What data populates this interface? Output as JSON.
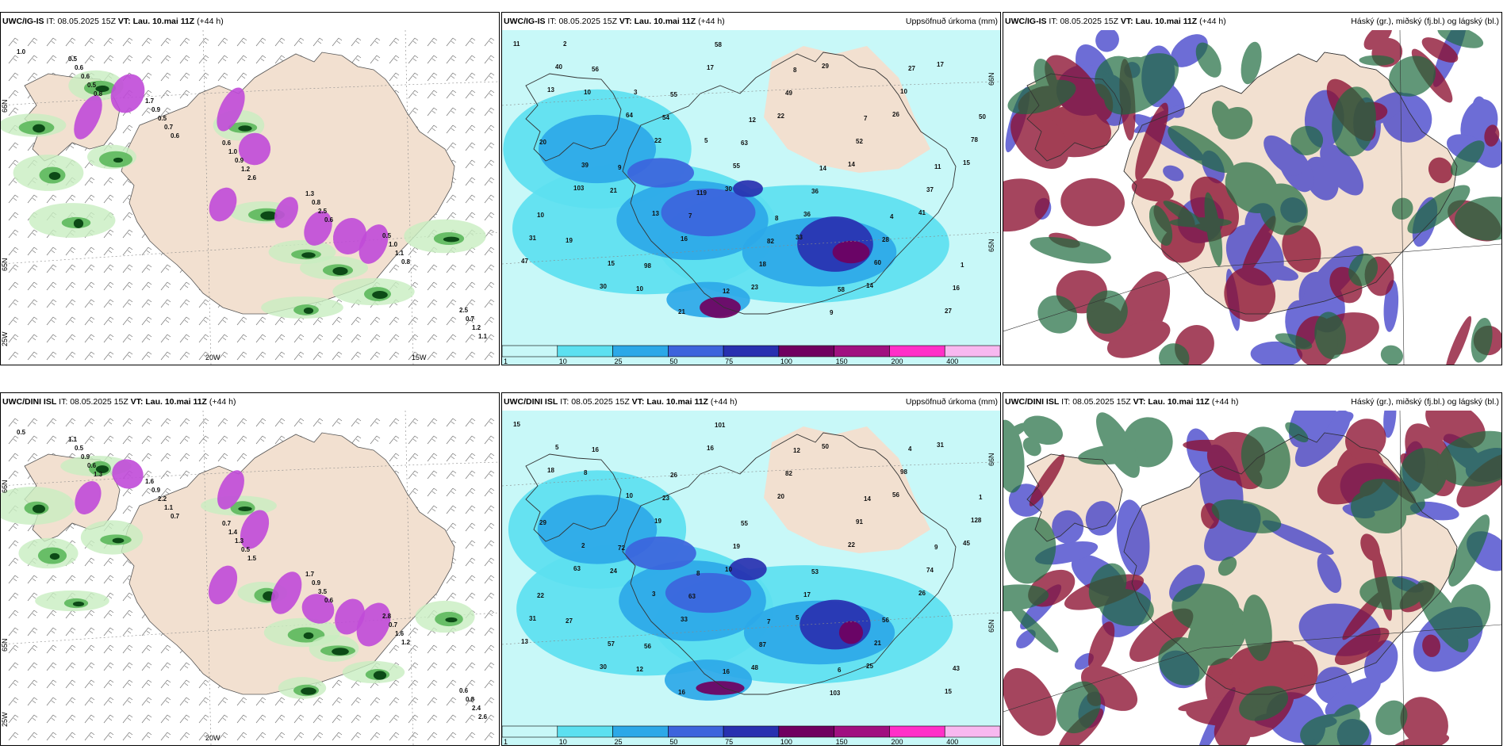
{
  "colors": {
    "land": "#f2e0d0",
    "sea": "#ffffff",
    "precip_light_green": "#c8eec0",
    "precip_green": "#5cb85c",
    "precip_dark_green": "#0c4a16",
    "snow_purple": "#c04ad8",
    "rain_c1": "#c8f8f8",
    "rain_c2": "#5ce0f0",
    "rain_c3": "#2ca8e8",
    "rain_c4": "#3c64dc",
    "rain_c5": "#2830b0",
    "rain_c6": "#700060",
    "cloud_high": "#1e6a3e",
    "cloud_mid": "#8c1030",
    "cloud_low": "#3c3cc8"
  },
  "panels": [
    {
      "id": "p1",
      "model": "UWC/IG-IS",
      "it_label": "IT:",
      "it_value": "08.05.2025 15Z",
      "vt_label": "VT:",
      "vt_value": "Lau. 10.mai 11Z",
      "lead": "(+44 h)",
      "right_title": "",
      "lon_labels": [
        "20W",
        "15W"
      ],
      "lat_labels": [
        "66N",
        "65N",
        "25W"
      ],
      "values": [
        "1.0",
        "0.8",
        "0.6",
        "2.6",
        "0.6",
        "0.8",
        "1.1",
        "0.5",
        "0.7",
        "1.2",
        "2.5",
        "1.1",
        "1.2",
        "0.6",
        "0.5",
        "0.9",
        "0.8",
        "1.0",
        "0.7",
        "0.6",
        "0.9",
        "1.0",
        "1.3",
        "0.5",
        "2.5",
        "0.5",
        "1.7",
        "0.6"
      ]
    },
    {
      "id": "p2",
      "model": "UWC/IG-IS",
      "it_label": "IT:",
      "it_value": "08.05.2025 15Z",
      "vt_label": "VT:",
      "vt_value": "Lau. 10.mai 11Z",
      "lead": "(+44 h)",
      "right_title": "Uppsöfnuð úrkoma (mm)",
      "lat_labels": [
        "66N",
        "65N"
      ],
      "values": [
        "11",
        "10",
        "22",
        "30",
        "33",
        "14",
        "17",
        "20",
        "21",
        "16",
        "23",
        "29",
        "26",
        "15",
        "19",
        "10",
        "17",
        "22",
        "14",
        "41",
        "47",
        "56",
        "54",
        "55",
        "36",
        "60",
        "27",
        "13",
        "9",
        "7",
        "18",
        "9",
        "10",
        "78",
        "103",
        "98",
        "58",
        "49",
        "52",
        "37",
        "31",
        "30",
        "55",
        "63",
        "36",
        "28",
        "16",
        "40",
        "64",
        "119",
        "82",
        "58",
        "27",
        "50",
        "39",
        "13",
        "12",
        "8",
        "7",
        "11",
        "10",
        "15",
        "21",
        "12",
        "14",
        "4",
        "1",
        "2",
        "3",
        "5",
        "8"
      ],
      "legend": [
        "1",
        "10",
        "25",
        "50",
        "75",
        "100",
        "150",
        "200",
        "400"
      ]
    },
    {
      "id": "p3",
      "model": "UWC/IG-IS",
      "it_label": "IT:",
      "it_value": "08.05.2025 15Z",
      "vt_label": "VT:",
      "vt_value": "Lau. 10.mai 11Z",
      "lead": "(+44 h)",
      "right_title": "Háský (gr.), miðský (fj.bl.) og lágský (bl.)"
    },
    {
      "id": "p4",
      "model": "UWC/DINI ISL",
      "it_label": "IT:",
      "it_value": "08.05.2025 15Z",
      "vt_label": "VT:",
      "vt_value": "Lau. 10.mai 11Z",
      "lead": "(+44 h)",
      "right_title": "",
      "lon_labels": [
        "20W"
      ],
      "lat_labels": [
        "66N",
        "65N",
        "25W"
      ],
      "values": [
        "0.5",
        "1.3",
        "0.7",
        "1.5",
        "0.6",
        "1.2",
        "2.6",
        "0.6",
        "1.1",
        "0.5",
        "3.5",
        "1.6",
        "2.4",
        "0.9",
        "2.2",
        "1.3",
        "0.9",
        "0.7",
        "0.8",
        "0.5",
        "0.9",
        "1.4",
        "1.7",
        "2.8",
        "0.6",
        "1.1",
        "1.6",
        "0.7"
      ]
    },
    {
      "id": "p5",
      "model": "UWC/DINI ISL",
      "it_label": "IT:",
      "it_value": "08.05.2025 15Z",
      "vt_label": "VT:",
      "vt_value": "Lau. 10.mai 11Z",
      "lead": "(+44 h)",
      "right_title": "Uppsöfnuð úrkoma (mm)",
      "lat_labels": [
        "66N",
        "65N"
      ],
      "values": [
        "15",
        "8",
        "19",
        "10",
        "5",
        "25",
        "31",
        "29",
        "24",
        "33",
        "48",
        "50",
        "56",
        "45",
        "27",
        "12",
        "16",
        "20",
        "22",
        "26",
        "13",
        "16",
        "23",
        "19",
        "17",
        "21",
        "15",
        "18",
        "72",
        "63",
        "87",
        "103",
        "98",
        "128",
        "63",
        "56",
        "101",
        "82",
        "91",
        "74",
        "31",
        "30",
        "26",
        "55",
        "53",
        "56",
        "43",
        "5",
        "10",
        "8",
        "7",
        "6",
        "4",
        "1",
        "2",
        "3",
        "16",
        "12",
        "14",
        "9",
        "22",
        "57",
        "16"
      ],
      "legend": [
        "1",
        "10",
        "25",
        "50",
        "75",
        "100",
        "150",
        "200",
        "400"
      ]
    },
    {
      "id": "p6",
      "model": "UWC/DINI ISL",
      "it_label": "IT:",
      "it_value": "08.05.2025 15Z",
      "vt_label": "VT:",
      "vt_value": "Lau. 10.mai 11Z",
      "lead": "(+44 h)",
      "right_title": "Háský (gr.), miðský (fj.bl.) og lágský (bl.)"
    }
  ]
}
